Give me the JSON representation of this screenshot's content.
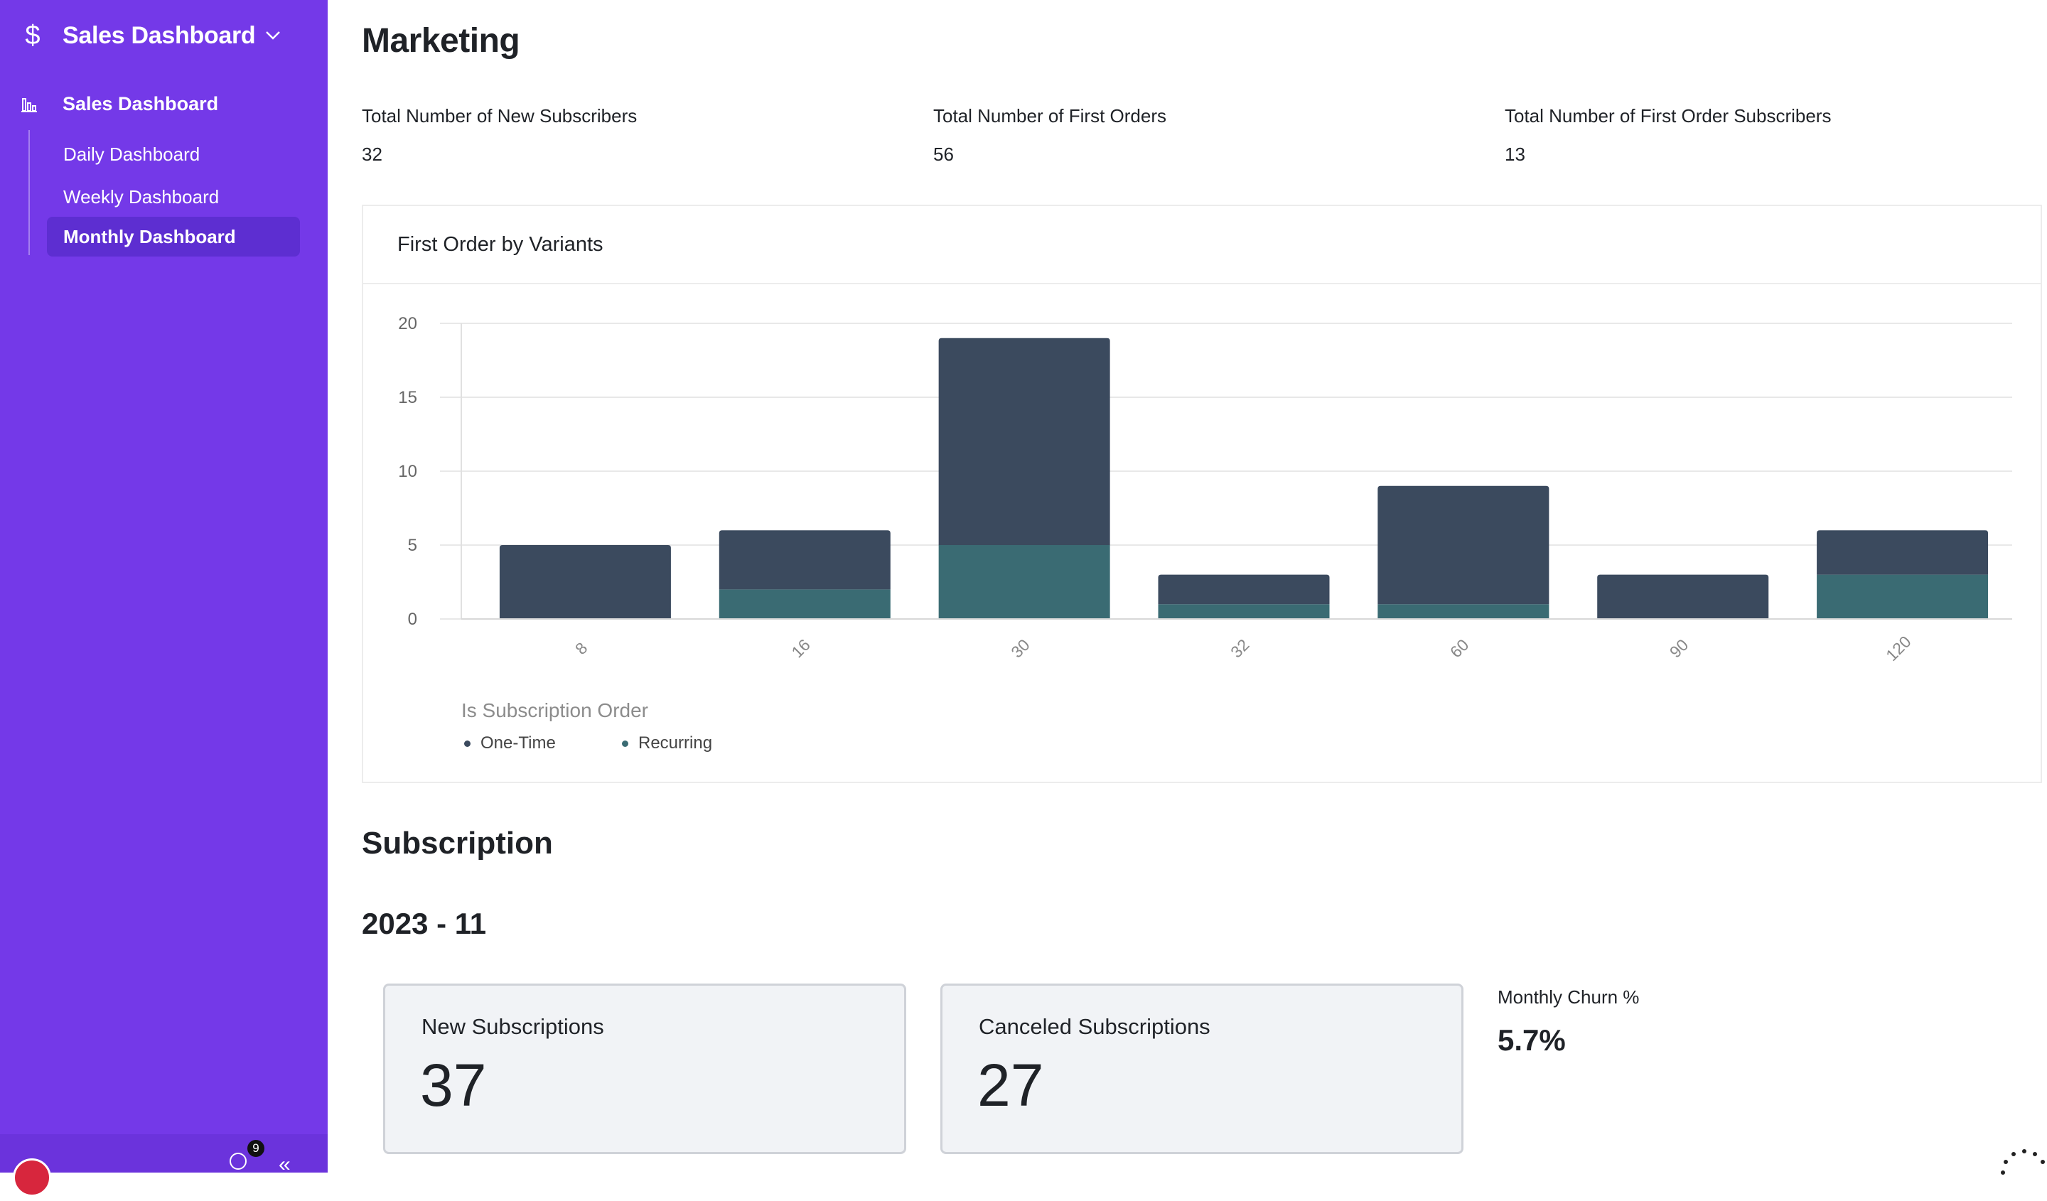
{
  "sidebar": {
    "brand_icon": "dollar-icon",
    "brand_title": "Sales Dashboard",
    "section_label": "Sales Dashboard",
    "items": [
      {
        "label": "Daily Dashboard",
        "active": false
      },
      {
        "label": "Weekly Dashboard",
        "active": false
      },
      {
        "label": "Monthly Dashboard",
        "active": true
      }
    ],
    "notification_count": "9",
    "accent": "#7439e8"
  },
  "marketing": {
    "title": "Marketing",
    "kpis": [
      {
        "label": "Total Number of New Subscribers",
        "value": "32"
      },
      {
        "label": "Total Number of First Orders",
        "value": "56"
      },
      {
        "label": "Total Number of First Order Subscribers",
        "value": "13"
      }
    ]
  },
  "chart_card": {
    "title": "First Order by Variants",
    "legend_title": "Is Subscription Order"
  },
  "chart_data": {
    "type": "bar",
    "stacked": true,
    "title": "First Order by Variants",
    "categories": [
      "8",
      "16",
      "30",
      "32",
      "60",
      "90",
      "120"
    ],
    "series": [
      {
        "name": "One-Time",
        "color": "#3b4a5e",
        "values": [
          5,
          4,
          14,
          2,
          8,
          3,
          3
        ]
      },
      {
        "name": "Recurring",
        "color": "#3a6b73",
        "values": [
          0,
          2,
          5,
          1,
          1,
          0,
          3
        ]
      }
    ],
    "yticks": [
      0,
      5,
      10,
      15,
      20
    ],
    "ylim": [
      0,
      20
    ],
    "grid": true,
    "legend_title": "Is Subscription Order",
    "legend_position": "bottom-left"
  },
  "subscription": {
    "title": "Subscription",
    "period": "2023 - 11",
    "new_label": "New Subscriptions",
    "new_value": "37",
    "canceled_label": "Canceled Subscriptions",
    "canceled_value": "27",
    "churn_label": "Monthly Churn %",
    "churn_value": "5.7%"
  }
}
